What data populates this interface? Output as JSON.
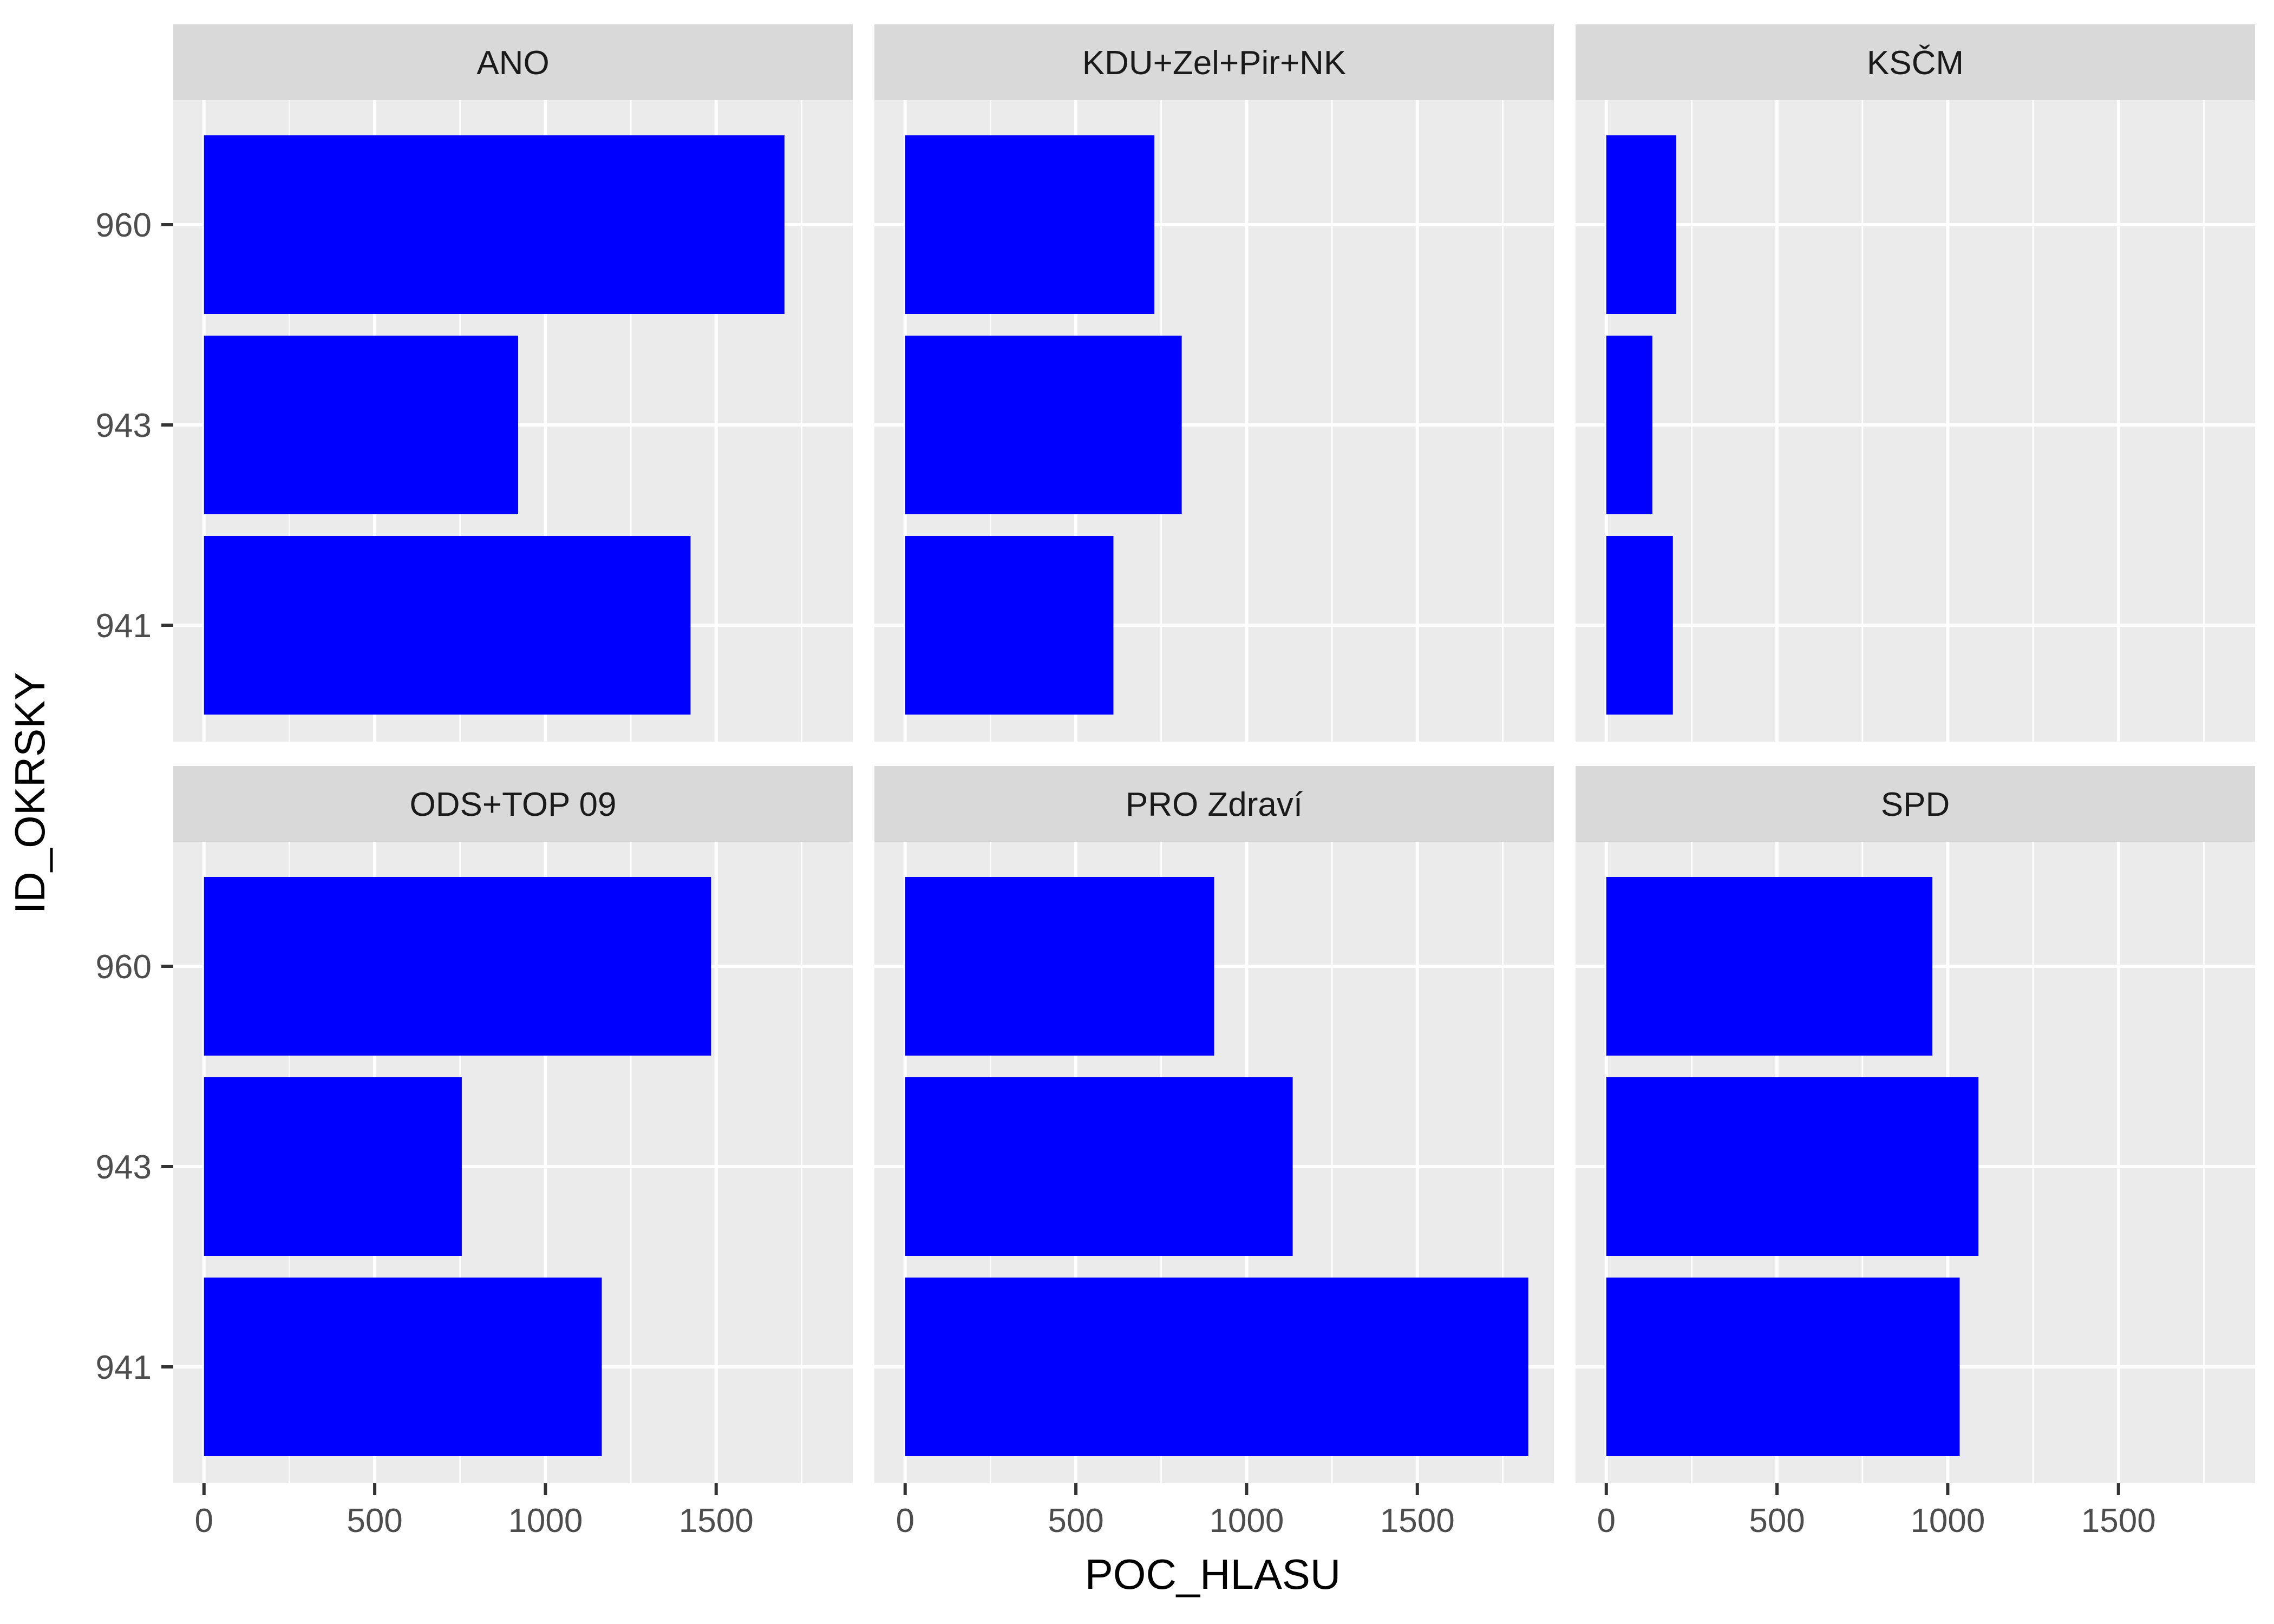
{
  "chart_data": {
    "type": "bar",
    "orientation": "horizontal",
    "layout": "facet-grid 2x3",
    "xlabel": "POC_HLASU",
    "ylabel": "ID_OKRSKY",
    "xlim": [
      -90,
      1900
    ],
    "x_ticks": [
      0,
      500,
      1000,
      1500
    ],
    "x_tick_labels": [
      "0",
      "500",
      "1000",
      "1500"
    ],
    "categories": [
      "941",
      "943",
      "960"
    ],
    "bar_color": "#0000FF",
    "panel_background": "#EBEBEB",
    "strip_background": "#D9D9D9",
    "grid": true,
    "facets": [
      {
        "name": "ANO",
        "values": [
          1425,
          920,
          1700
        ]
      },
      {
        "name": "KDU+Zel+Pir+NK",
        "values": [
          610,
          810,
          730
        ]
      },
      {
        "name": "KSČM",
        "values": [
          195,
          135,
          205
        ]
      },
      {
        "name": "ODS+TOP 09",
        "values": [
          1165,
          755,
          1485
        ]
      },
      {
        "name": "PRO Zdraví",
        "values": [
          1825,
          1135,
          905
        ]
      },
      {
        "name": "SPD",
        "values": [
          1035,
          1090,
          955
        ]
      }
    ]
  }
}
